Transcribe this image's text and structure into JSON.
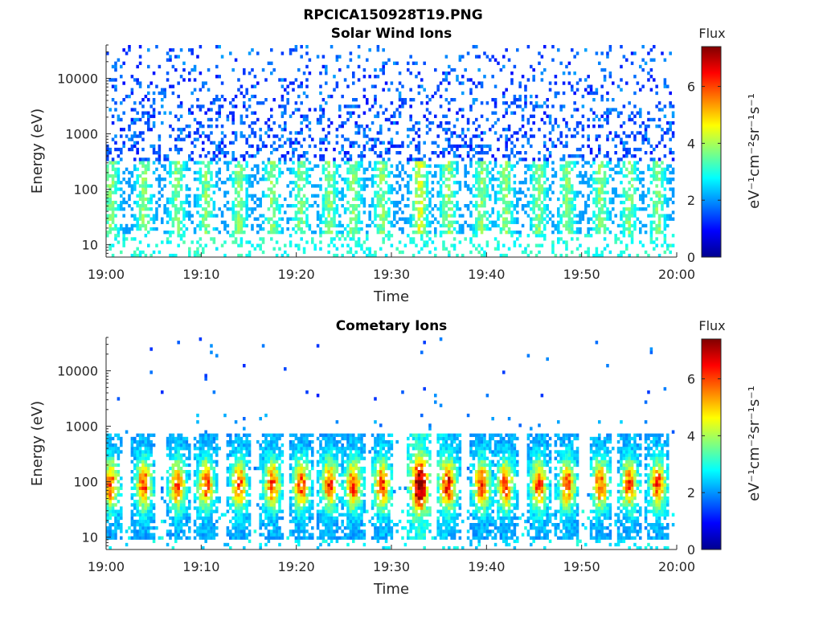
{
  "figure": {
    "title": "RPCICA150928T19.PNG"
  },
  "chart_data": [
    {
      "type": "heatmap",
      "title": "Solar Wind Ions",
      "xlabel": "Time",
      "ylabel": "Energy (eV)",
      "x_tick_labels": [
        "19:00",
        "19:10",
        "19:20",
        "19:30",
        "19:40",
        "19:50",
        "20:00"
      ],
      "x_range": [
        "19:00",
        "20:00"
      ],
      "y_scale": "log",
      "y_tick_values": [
        10,
        100,
        1000,
        10000
      ],
      "y_tick_labels": [
        "10",
        "100",
        "1000",
        "10000"
      ],
      "y_range": [
        6,
        40000
      ],
      "colorbar": {
        "label": "Flux",
        "unit_label": "eV⁻¹cm⁻²sr⁻¹s⁻¹",
        "tick_labels": [
          "0",
          "2",
          "4",
          "6"
        ],
        "range": [
          0,
          7.4
        ],
        "colormap": "jet"
      },
      "pattern": "scattered low-level flux (≈1–2) across 300–20000 eV; moderate bursts (≈2.5–4.5) at 20–300 eV recurring every ~3 min, strongest near 19:33"
    },
    {
      "type": "heatmap",
      "title": "Cometary Ions",
      "xlabel": "Time",
      "ylabel": "Energy (eV)",
      "x_tick_labels": [
        "19:00",
        "19:10",
        "19:20",
        "19:30",
        "19:40",
        "19:50",
        "20:00"
      ],
      "x_range": [
        "19:00",
        "20:00"
      ],
      "y_scale": "log",
      "y_tick_values": [
        10,
        100,
        1000,
        10000
      ],
      "y_tick_labels": [
        "10",
        "100",
        "1000",
        "10000"
      ],
      "y_range": [
        6,
        40000
      ],
      "colorbar": {
        "label": "Flux",
        "unit_label": "eV⁻¹cm⁻²sr⁻¹s⁻¹",
        "tick_labels": [
          "0",
          "2",
          "4",
          "6"
        ],
        "range": [
          0,
          7.4
        ],
        "colormap": "jet"
      },
      "burst_centers_min": [
        0.5,
        4,
        7.5,
        10.5,
        14,
        17.5,
        20.5,
        23.5,
        26,
        29,
        33,
        36,
        39.5,
        42,
        45.5,
        48.5,
        52,
        55,
        58
      ],
      "burst_peak_energy_eV": 80,
      "burst_peak_flux": 6.2,
      "pattern": "intense dispersed bursts (flux ≈4–6.5) between 15 and 600 eV recurring every ~3 min, strongest near 19:33; sparse isolated counts above 2000 eV"
    }
  ]
}
